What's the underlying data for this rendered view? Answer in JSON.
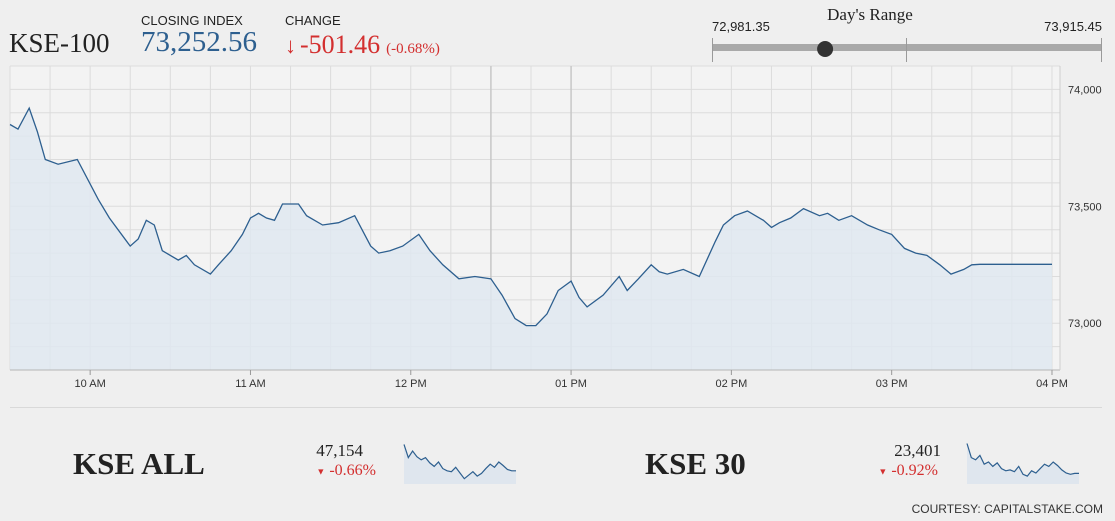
{
  "header": {
    "index_name": "KSE-100",
    "closing_label": "CLOSING INDEX",
    "closing_value": "73,252.56",
    "change_label": "CHANGE",
    "change_arrow": "↓",
    "change_value": "-501.46",
    "change_pct": "(-0.68%)"
  },
  "days_range": {
    "title": "Day's Range",
    "low": "72,981.35",
    "high": "73,915.45",
    "current_fraction": 0.29
  },
  "colors": {
    "accent": "#2d5f8f",
    "negative": "#d32f2f",
    "area": "#dfe8f0"
  },
  "chart_data": [
    {
      "type": "area",
      "title": "KSE-100",
      "x_ticks": [
        "10 AM",
        "11 AM",
        "12 PM",
        "01 PM",
        "02 PM",
        "03 PM",
        "04 PM"
      ],
      "y_ticks": [
        "74,000",
        "73,500",
        "73,000"
      ],
      "ylim": [
        72800,
        74100
      ],
      "grid": true,
      "x_hours": [
        9.5,
        9.55,
        9.62,
        9.67,
        9.72,
        9.8,
        9.92,
        10.05,
        10.12,
        10.25,
        10.3,
        10.35,
        10.4,
        10.45,
        10.55,
        10.6,
        10.65,
        10.75,
        10.8,
        10.88,
        10.95,
        11.0,
        11.05,
        11.1,
        11.15,
        11.2,
        11.3,
        11.35,
        11.45,
        11.55,
        11.65,
        11.75,
        11.8,
        11.87,
        11.95,
        12.05,
        12.12,
        12.2,
        12.3,
        12.4,
        12.5,
        12.57,
        12.65,
        12.72,
        12.78,
        12.85,
        12.92,
        13.0,
        13.05,
        13.1,
        13.2,
        13.3,
        13.35,
        13.42,
        13.5,
        13.55,
        13.6,
        13.7,
        13.8,
        13.9,
        13.95,
        14.02,
        14.1,
        14.2,
        14.25,
        14.3,
        14.37,
        14.45,
        14.55,
        14.6,
        14.67,
        14.75,
        14.85,
        14.92,
        15.0,
        15.08,
        15.15,
        15.22,
        15.3,
        15.37,
        15.45,
        15.5,
        15.55,
        16.0
      ],
      "values": [
        73850,
        73830,
        73920,
        73820,
        73700,
        73680,
        73700,
        73530,
        73450,
        73330,
        73360,
        73440,
        73420,
        73310,
        73270,
        73290,
        73250,
        73210,
        73250,
        73310,
        73380,
        73450,
        73470,
        73450,
        73440,
        73510,
        73510,
        73460,
        73420,
        73430,
        73460,
        73330,
        73300,
        73310,
        73330,
        73380,
        73310,
        73250,
        73190,
        73200,
        73190,
        73120,
        73020,
        72990,
        72990,
        73040,
        73140,
        73180,
        73110,
        73070,
        73120,
        73200,
        73140,
        73190,
        73250,
        73220,
        73210,
        73230,
        73200,
        73350,
        73420,
        73460,
        73480,
        73440,
        73410,
        73430,
        73450,
        73490,
        73460,
        73470,
        73440,
        73460,
        73420,
        73400,
        73380,
        73320,
        73300,
        73290,
        73250,
        73210,
        73230,
        73250,
        73252,
        73252
      ]
    },
    {
      "type": "area",
      "title": "KSE ALL",
      "value": "47,154",
      "change": "-0.66%",
      "values": [
        0.9,
        0.6,
        0.75,
        0.62,
        0.55,
        0.6,
        0.48,
        0.4,
        0.5,
        0.35,
        0.3,
        0.28,
        0.38,
        0.25,
        0.12,
        0.2,
        0.28,
        0.18,
        0.24,
        0.35,
        0.45,
        0.38,
        0.5,
        0.42,
        0.33,
        0.3,
        0.3
      ]
    },
    {
      "type": "area",
      "title": "KSE 30",
      "value": "23,401",
      "change": "-0.92%",
      "values": [
        0.92,
        0.6,
        0.55,
        0.65,
        0.45,
        0.5,
        0.4,
        0.48,
        0.35,
        0.3,
        0.32,
        0.28,
        0.4,
        0.22,
        0.18,
        0.3,
        0.25,
        0.35,
        0.45,
        0.4,
        0.5,
        0.42,
        0.32,
        0.25,
        0.22,
        0.24,
        0.24
      ]
    }
  ],
  "courtesy": "COURTESY: CAPITALSTAKE.COM"
}
